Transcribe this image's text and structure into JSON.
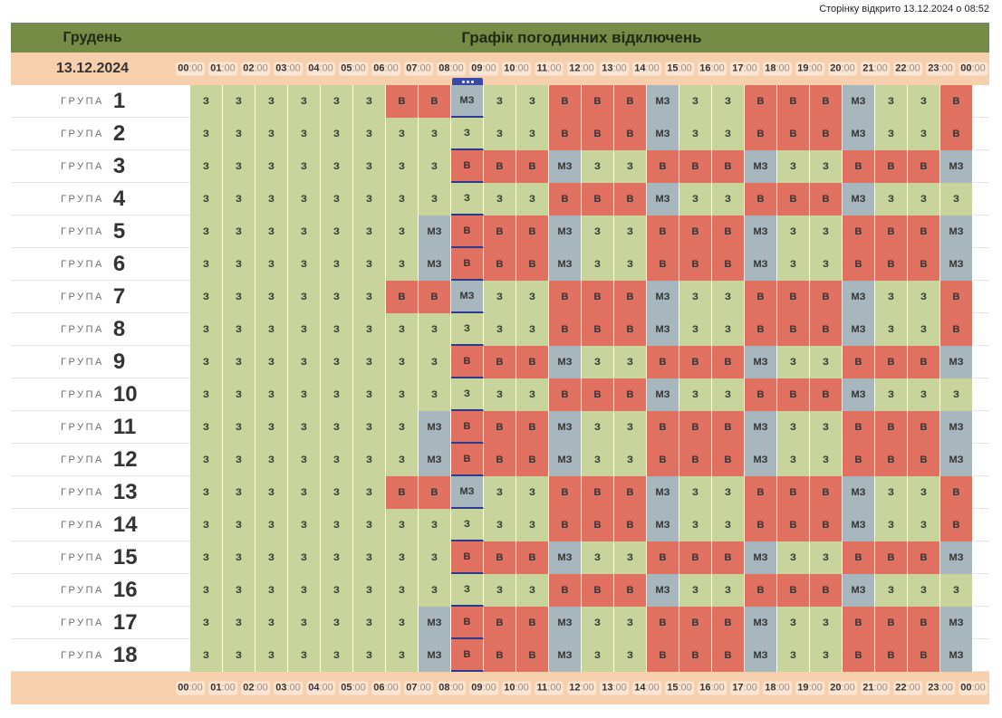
{
  "page_opened": "Сторінку відкрито 13.12.2024 о 08:52",
  "header": {
    "month": "Грудень",
    "title": "Графік погодинних відключень"
  },
  "date": "13.12.2024",
  "hours": [
    "00",
    "01",
    "02",
    "03",
    "04",
    "05",
    "06",
    "07",
    "08",
    "09",
    "10",
    "11",
    "12",
    "13",
    "14",
    "15",
    "16",
    "17",
    "18",
    "19",
    "20",
    "21",
    "22",
    "23",
    "00"
  ],
  "minutes_suffix": ":00",
  "group_word": "ГРУПА",
  "current_hour_index": 8,
  "legend_codes": {
    "z": "З",
    "v": "В",
    "mz": "МЗ"
  },
  "colors": {
    "z": "#c8d49b",
    "v": "#e0705f",
    "mz": "#a8b6bd",
    "header": "#768b45",
    "hours_bar": "#f6cfad",
    "current": "#2e3a8c"
  },
  "groups": [
    {
      "num": "1",
      "slots": [
        "З",
        "З",
        "З",
        "З",
        "З",
        "З",
        "В",
        "В",
        "МЗ",
        "З",
        "З",
        "В",
        "В",
        "В",
        "МЗ",
        "З",
        "З",
        "В",
        "В",
        "В",
        "МЗ",
        "З",
        "З",
        "В"
      ]
    },
    {
      "num": "2",
      "slots": [
        "З",
        "З",
        "З",
        "З",
        "З",
        "З",
        "З",
        "З",
        "З",
        "З",
        "З",
        "В",
        "В",
        "В",
        "МЗ",
        "З",
        "З",
        "В",
        "В",
        "В",
        "МЗ",
        "З",
        "З",
        "В"
      ]
    },
    {
      "num": "3",
      "slots": [
        "З",
        "З",
        "З",
        "З",
        "З",
        "З",
        "З",
        "З",
        "В",
        "В",
        "В",
        "МЗ",
        "З",
        "З",
        "В",
        "В",
        "В",
        "МЗ",
        "З",
        "З",
        "В",
        "В",
        "В",
        "МЗ"
      ]
    },
    {
      "num": "4",
      "slots": [
        "З",
        "З",
        "З",
        "З",
        "З",
        "З",
        "З",
        "З",
        "З",
        "З",
        "З",
        "В",
        "В",
        "В",
        "МЗ",
        "З",
        "З",
        "В",
        "В",
        "В",
        "МЗ",
        "З",
        "З",
        "З"
      ]
    },
    {
      "num": "5",
      "slots": [
        "З",
        "З",
        "З",
        "З",
        "З",
        "З",
        "З",
        "МЗ",
        "В",
        "В",
        "В",
        "МЗ",
        "З",
        "З",
        "В",
        "В",
        "В",
        "МЗ",
        "З",
        "З",
        "В",
        "В",
        "В",
        "МЗ"
      ]
    },
    {
      "num": "6",
      "slots": [
        "З",
        "З",
        "З",
        "З",
        "З",
        "З",
        "З",
        "МЗ",
        "В",
        "В",
        "В",
        "МЗ",
        "З",
        "З",
        "В",
        "В",
        "В",
        "МЗ",
        "З",
        "З",
        "В",
        "В",
        "В",
        "МЗ"
      ]
    },
    {
      "num": "7",
      "slots": [
        "З",
        "З",
        "З",
        "З",
        "З",
        "З",
        "В",
        "В",
        "МЗ",
        "З",
        "З",
        "В",
        "В",
        "В",
        "МЗ",
        "З",
        "З",
        "В",
        "В",
        "В",
        "МЗ",
        "З",
        "З",
        "В"
      ]
    },
    {
      "num": "8",
      "slots": [
        "З",
        "З",
        "З",
        "З",
        "З",
        "З",
        "З",
        "З",
        "З",
        "З",
        "З",
        "В",
        "В",
        "В",
        "МЗ",
        "З",
        "З",
        "В",
        "В",
        "В",
        "МЗ",
        "З",
        "З",
        "В"
      ]
    },
    {
      "num": "9",
      "slots": [
        "З",
        "З",
        "З",
        "З",
        "З",
        "З",
        "З",
        "З",
        "В",
        "В",
        "В",
        "МЗ",
        "З",
        "З",
        "В",
        "В",
        "В",
        "МЗ",
        "З",
        "З",
        "В",
        "В",
        "В",
        "МЗ"
      ]
    },
    {
      "num": "10",
      "slots": [
        "З",
        "З",
        "З",
        "З",
        "З",
        "З",
        "З",
        "З",
        "З",
        "З",
        "З",
        "В",
        "В",
        "В",
        "МЗ",
        "З",
        "З",
        "В",
        "В",
        "В",
        "МЗ",
        "З",
        "З",
        "З"
      ]
    },
    {
      "num": "11",
      "slots": [
        "З",
        "З",
        "З",
        "З",
        "З",
        "З",
        "З",
        "МЗ",
        "В",
        "В",
        "В",
        "МЗ",
        "З",
        "З",
        "В",
        "В",
        "В",
        "МЗ",
        "З",
        "З",
        "В",
        "В",
        "В",
        "МЗ"
      ]
    },
    {
      "num": "12",
      "slots": [
        "З",
        "З",
        "З",
        "З",
        "З",
        "З",
        "З",
        "МЗ",
        "В",
        "В",
        "В",
        "МЗ",
        "З",
        "З",
        "В",
        "В",
        "В",
        "МЗ",
        "З",
        "З",
        "В",
        "В",
        "В",
        "МЗ"
      ]
    },
    {
      "num": "13",
      "slots": [
        "З",
        "З",
        "З",
        "З",
        "З",
        "З",
        "В",
        "В",
        "МЗ",
        "З",
        "З",
        "В",
        "В",
        "В",
        "МЗ",
        "З",
        "З",
        "В",
        "В",
        "В",
        "МЗ",
        "З",
        "З",
        "В"
      ]
    },
    {
      "num": "14",
      "slots": [
        "З",
        "З",
        "З",
        "З",
        "З",
        "З",
        "З",
        "З",
        "З",
        "З",
        "З",
        "В",
        "В",
        "В",
        "МЗ",
        "З",
        "З",
        "В",
        "В",
        "В",
        "МЗ",
        "З",
        "З",
        "В"
      ]
    },
    {
      "num": "15",
      "slots": [
        "З",
        "З",
        "З",
        "З",
        "З",
        "З",
        "З",
        "З",
        "В",
        "В",
        "В",
        "МЗ",
        "З",
        "З",
        "В",
        "В",
        "В",
        "МЗ",
        "З",
        "З",
        "В",
        "В",
        "В",
        "МЗ"
      ]
    },
    {
      "num": "16",
      "slots": [
        "З",
        "З",
        "З",
        "З",
        "З",
        "З",
        "З",
        "З",
        "З",
        "З",
        "З",
        "В",
        "В",
        "В",
        "МЗ",
        "З",
        "З",
        "В",
        "В",
        "В",
        "МЗ",
        "З",
        "З",
        "З"
      ]
    },
    {
      "num": "17",
      "slots": [
        "З",
        "З",
        "З",
        "З",
        "З",
        "З",
        "З",
        "МЗ",
        "В",
        "В",
        "В",
        "МЗ",
        "З",
        "З",
        "В",
        "В",
        "В",
        "МЗ",
        "З",
        "З",
        "В",
        "В",
        "В",
        "МЗ"
      ]
    },
    {
      "num": "18",
      "slots": [
        "З",
        "З",
        "З",
        "З",
        "З",
        "З",
        "З",
        "МЗ",
        "В",
        "В",
        "В",
        "МЗ",
        "З",
        "З",
        "В",
        "В",
        "В",
        "МЗ",
        "З",
        "З",
        "В",
        "В",
        "В",
        "МЗ"
      ]
    }
  ]
}
